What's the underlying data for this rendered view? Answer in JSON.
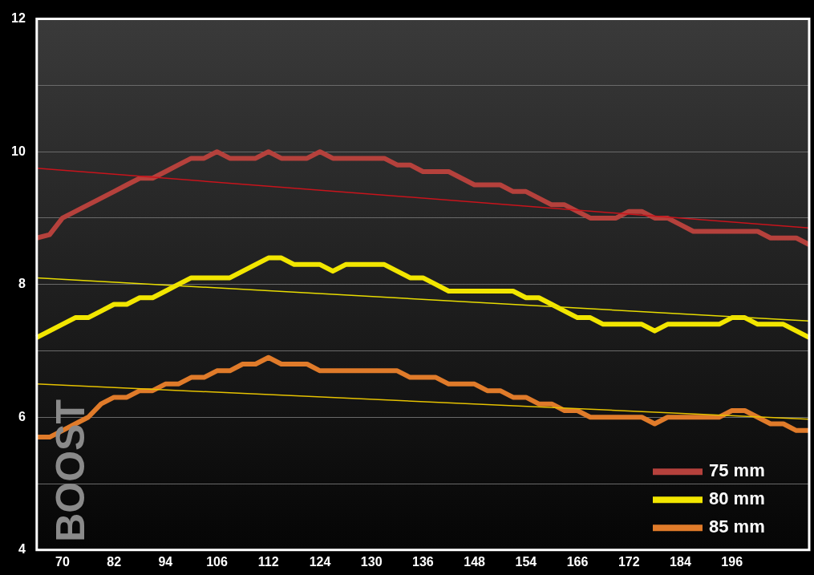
{
  "chart_data": {
    "type": "line",
    "ylabel": "BOOST",
    "categories": [
      null,
      null,
      "70",
      null,
      null,
      null,
      "82",
      null,
      null,
      null,
      "94",
      null,
      null,
      null,
      "106",
      null,
      null,
      null,
      "112",
      null,
      null,
      null,
      "124",
      null,
      null,
      null,
      "130",
      null,
      null,
      null,
      "136",
      null,
      null,
      null,
      "148",
      null,
      null,
      null,
      "154",
      null,
      null,
      null,
      "166",
      null,
      null,
      null,
      "172",
      null,
      null,
      null,
      "184",
      null,
      null,
      null,
      "196",
      null,
      null,
      null,
      null,
      null,
      null
    ],
    "series": [
      {
        "name": "75 mm",
        "color": "#b5413c",
        "values": [
          8.7,
          8.75,
          9.0,
          9.1,
          9.2,
          9.3,
          9.4,
          9.5,
          9.6,
          9.6,
          9.7,
          9.8,
          9.9,
          9.9,
          10.0,
          9.9,
          9.9,
          9.9,
          10.0,
          9.9,
          9.9,
          9.9,
          10.0,
          9.9,
          9.9,
          9.9,
          9.9,
          9.9,
          9.8,
          9.8,
          9.7,
          9.7,
          9.7,
          9.6,
          9.5,
          9.5,
          9.5,
          9.4,
          9.4,
          9.3,
          9.2,
          9.2,
          9.1,
          9.0,
          9.0,
          9.0,
          9.1,
          9.1,
          9.0,
          9.0,
          8.9,
          8.8,
          8.8,
          8.8,
          8.8,
          8.8,
          8.8,
          8.7,
          8.7,
          8.7,
          8.6
        ]
      },
      {
        "name": "80 mm",
        "color": "#f2e600",
        "values": [
          7.2,
          7.3,
          7.4,
          7.5,
          7.5,
          7.6,
          7.7,
          7.7,
          7.8,
          7.8,
          7.9,
          8.0,
          8.1,
          8.1,
          8.1,
          8.1,
          8.2,
          8.3,
          8.4,
          8.4,
          8.3,
          8.3,
          8.3,
          8.2,
          8.3,
          8.3,
          8.3,
          8.3,
          8.2,
          8.1,
          8.1,
          8.0,
          7.9,
          7.9,
          7.9,
          7.9,
          7.9,
          7.9,
          7.8,
          7.8,
          7.7,
          7.6,
          7.5,
          7.5,
          7.4,
          7.4,
          7.4,
          7.4,
          7.3,
          7.4,
          7.4,
          7.4,
          7.4,
          7.4,
          7.5,
          7.5,
          7.4,
          7.4,
          7.4,
          7.3,
          7.2
        ]
      },
      {
        "name": "85 mm",
        "color": "#e07b2a",
        "values": [
          5.7,
          5.7,
          5.8,
          5.9,
          6.0,
          6.2,
          6.3,
          6.3,
          6.4,
          6.4,
          6.5,
          6.5,
          6.6,
          6.6,
          6.7,
          6.7,
          6.8,
          6.8,
          6.9,
          6.8,
          6.8,
          6.8,
          6.7,
          6.7,
          6.7,
          6.7,
          6.7,
          6.7,
          6.7,
          6.6,
          6.6,
          6.6,
          6.5,
          6.5,
          6.5,
          6.4,
          6.4,
          6.3,
          6.3,
          6.2,
          6.2,
          6.1,
          6.1,
          6.0,
          6.0,
          6.0,
          6.0,
          6.0,
          5.9,
          6.0,
          6.0,
          6.0,
          6.0,
          6.0,
          6.1,
          6.1,
          6.0,
          5.9,
          5.9,
          5.8,
          5.8
        ]
      },
      {
        "color": "#c8141c",
        "values": [
          9.75,
          null,
          null,
          null,
          null,
          null,
          null,
          null,
          null,
          null,
          null,
          null,
          null,
          null,
          null,
          null,
          null,
          null,
          null,
          null,
          null,
          null,
          null,
          null,
          null,
          null,
          null,
          null,
          null,
          null,
          null,
          null,
          null,
          null,
          null,
          null,
          null,
          null,
          null,
          null,
          null,
          null,
          null,
          null,
          null,
          null,
          null,
          null,
          null,
          null,
          null,
          null,
          null,
          null,
          null,
          null,
          null,
          null,
          null,
          null,
          8.85
        ]
      },
      {
        "color": "#e8dc00",
        "values": [
          8.1,
          null,
          null,
          null,
          null,
          null,
          null,
          null,
          null,
          null,
          null,
          null,
          null,
          null,
          null,
          null,
          null,
          null,
          null,
          null,
          null,
          null,
          null,
          null,
          null,
          null,
          null,
          null,
          null,
          null,
          null,
          null,
          null,
          null,
          null,
          null,
          null,
          null,
          null,
          null,
          null,
          null,
          null,
          null,
          null,
          null,
          null,
          null,
          null,
          null,
          null,
          null,
          null,
          null,
          null,
          null,
          null,
          null,
          null,
          null,
          7.45
        ]
      },
      {
        "color": "#e6c200",
        "values": [
          6.5,
          null,
          null,
          null,
          null,
          null,
          null,
          null,
          null,
          null,
          null,
          null,
          null,
          null,
          null,
          null,
          null,
          null,
          null,
          null,
          null,
          null,
          null,
          null,
          null,
          null,
          null,
          null,
          null,
          null,
          null,
          null,
          null,
          null,
          null,
          null,
          null,
          null,
          null,
          null,
          null,
          null,
          null,
          null,
          null,
          null,
          null,
          null,
          null,
          null,
          null,
          null,
          null,
          null,
          null,
          null,
          null,
          null,
          null,
          null,
          5.97
        ]
      }
    ],
    "ylim": [
      4,
      12
    ],
    "yticks": [
      4,
      {
        "value": 5,
        "label": null
      },
      6,
      {
        "value": 7,
        "label": null
      },
      8,
      {
        "value": 9,
        "label": null
      },
      10,
      {
        "value": 11,
        "label": null
      },
      12
    ],
    "grid": "y",
    "legend": "bottom right",
    "marker": "none",
    "line_style": "solid"
  }
}
